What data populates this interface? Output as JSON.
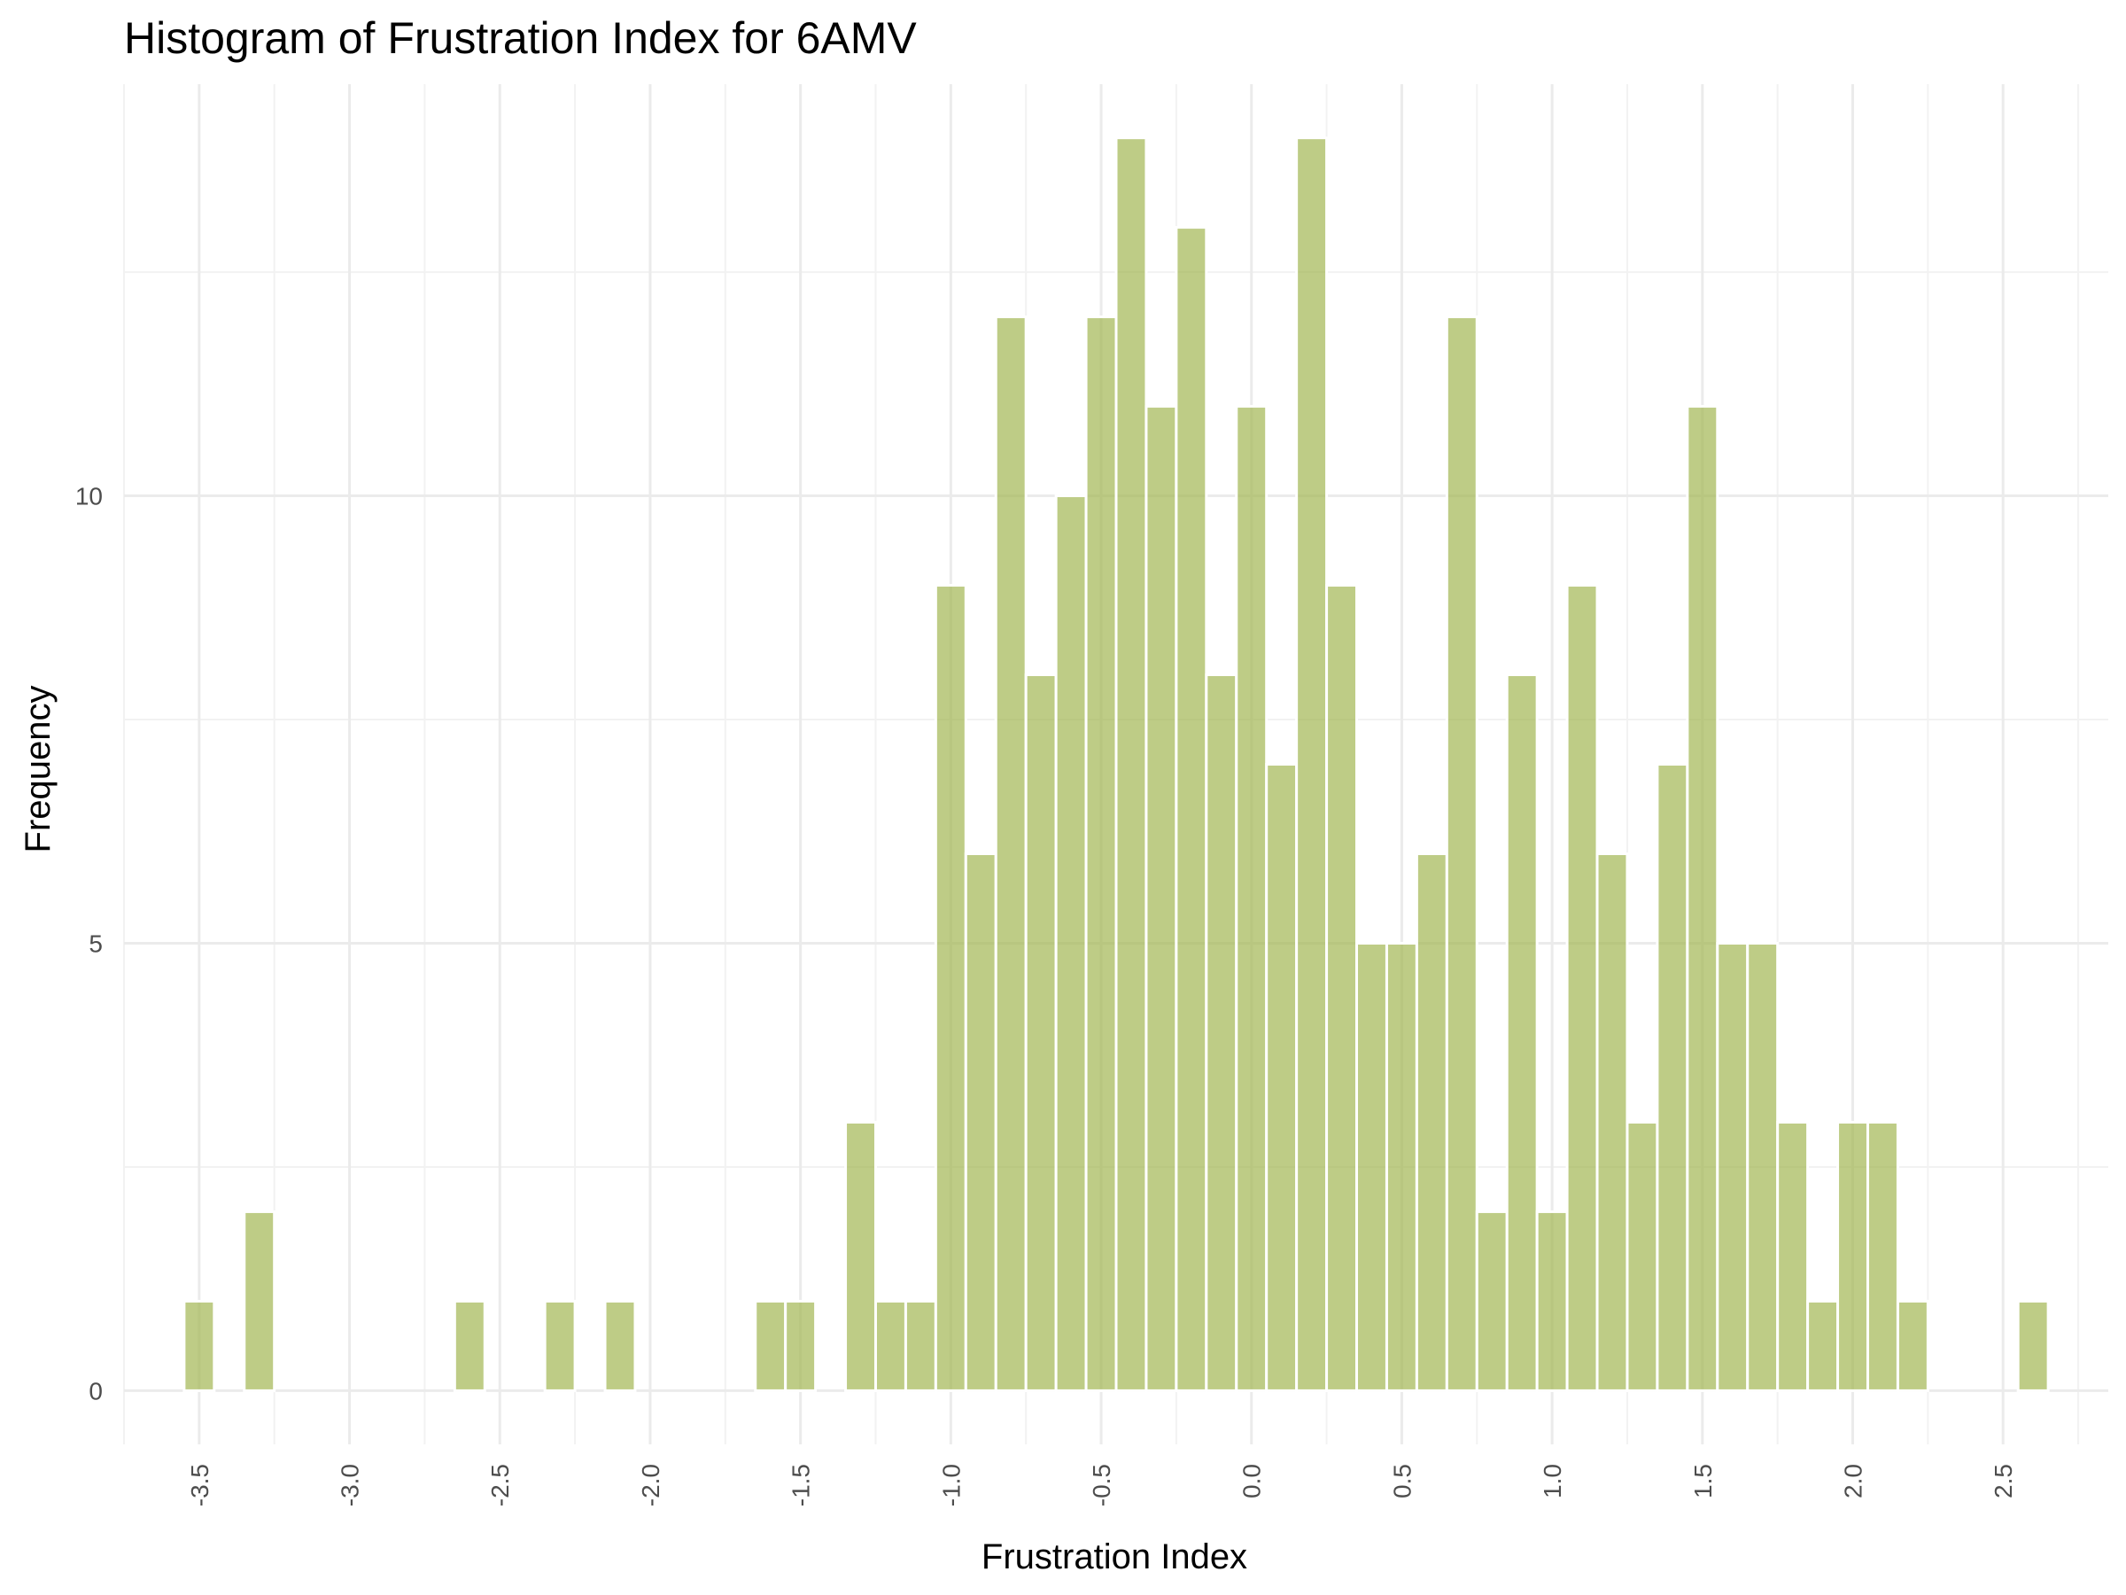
{
  "chart_data": {
    "type": "bar",
    "title": "Histogram of Frustration Index for 6AMV",
    "xlabel": "Frustration Index",
    "ylabel": "Frequency",
    "bar_color": "#a3b653",
    "bin_width": 0.1,
    "xlim": [
      -3.75,
      2.85
    ],
    "ylim": [
      -0.6,
      14.6
    ],
    "x_ticks": [
      -3.5,
      -3.0,
      -2.5,
      -2.0,
      -1.5,
      -1.0,
      -0.5,
      0.0,
      0.5,
      1.0,
      1.5,
      2.0,
      2.5
    ],
    "x_tick_labels": [
      "-3.5",
      "-3.0",
      "-2.5",
      "-2.0",
      "-1.5",
      "-1.0",
      "-0.5",
      "0.0",
      "0.5",
      "1.0",
      "1.5",
      "2.0",
      "2.5"
    ],
    "y_ticks": [
      0,
      5,
      10
    ],
    "y_tick_labels": [
      "0",
      "5",
      "10"
    ],
    "x_label_rotation": "vertical",
    "grid": true,
    "bins": [
      {
        "x": -3.5,
        "count": 1
      },
      {
        "x": -3.3,
        "count": 2
      },
      {
        "x": -2.6,
        "count": 1
      },
      {
        "x": -2.3,
        "count": 1
      },
      {
        "x": -2.1,
        "count": 1
      },
      {
        "x": -1.6,
        "count": 1
      },
      {
        "x": -1.5,
        "count": 1
      },
      {
        "x": -1.3,
        "count": 3
      },
      {
        "x": -1.2,
        "count": 1
      },
      {
        "x": -1.1,
        "count": 1
      },
      {
        "x": -1.0,
        "count": 9
      },
      {
        "x": -0.9,
        "count": 6
      },
      {
        "x": -0.8,
        "count": 12
      },
      {
        "x": -0.7,
        "count": 8
      },
      {
        "x": -0.6,
        "count": 10
      },
      {
        "x": -0.5,
        "count": 12
      },
      {
        "x": -0.4,
        "count": 14
      },
      {
        "x": -0.3,
        "count": 11
      },
      {
        "x": -0.2,
        "count": 13
      },
      {
        "x": -0.1,
        "count": 8
      },
      {
        "x": 0.0,
        "count": 11
      },
      {
        "x": 0.1,
        "count": 7
      },
      {
        "x": 0.2,
        "count": 14
      },
      {
        "x": 0.3,
        "count": 9
      },
      {
        "x": 0.4,
        "count": 5
      },
      {
        "x": 0.5,
        "count": 5
      },
      {
        "x": 0.6,
        "count": 6
      },
      {
        "x": 0.7,
        "count": 12
      },
      {
        "x": 0.8,
        "count": 2
      },
      {
        "x": 0.9,
        "count": 8
      },
      {
        "x": 1.0,
        "count": 2
      },
      {
        "x": 1.1,
        "count": 9
      },
      {
        "x": 1.2,
        "count": 6
      },
      {
        "x": 1.3,
        "count": 3
      },
      {
        "x": 1.4,
        "count": 7
      },
      {
        "x": 1.5,
        "count": 11
      },
      {
        "x": 1.6,
        "count": 5
      },
      {
        "x": 1.7,
        "count": 5
      },
      {
        "x": 1.8,
        "count": 3
      },
      {
        "x": 1.9,
        "count": 1
      },
      {
        "x": 2.0,
        "count": 3
      },
      {
        "x": 2.1,
        "count": 3
      },
      {
        "x": 2.2,
        "count": 1
      },
      {
        "x": 2.6,
        "count": 1
      }
    ]
  }
}
